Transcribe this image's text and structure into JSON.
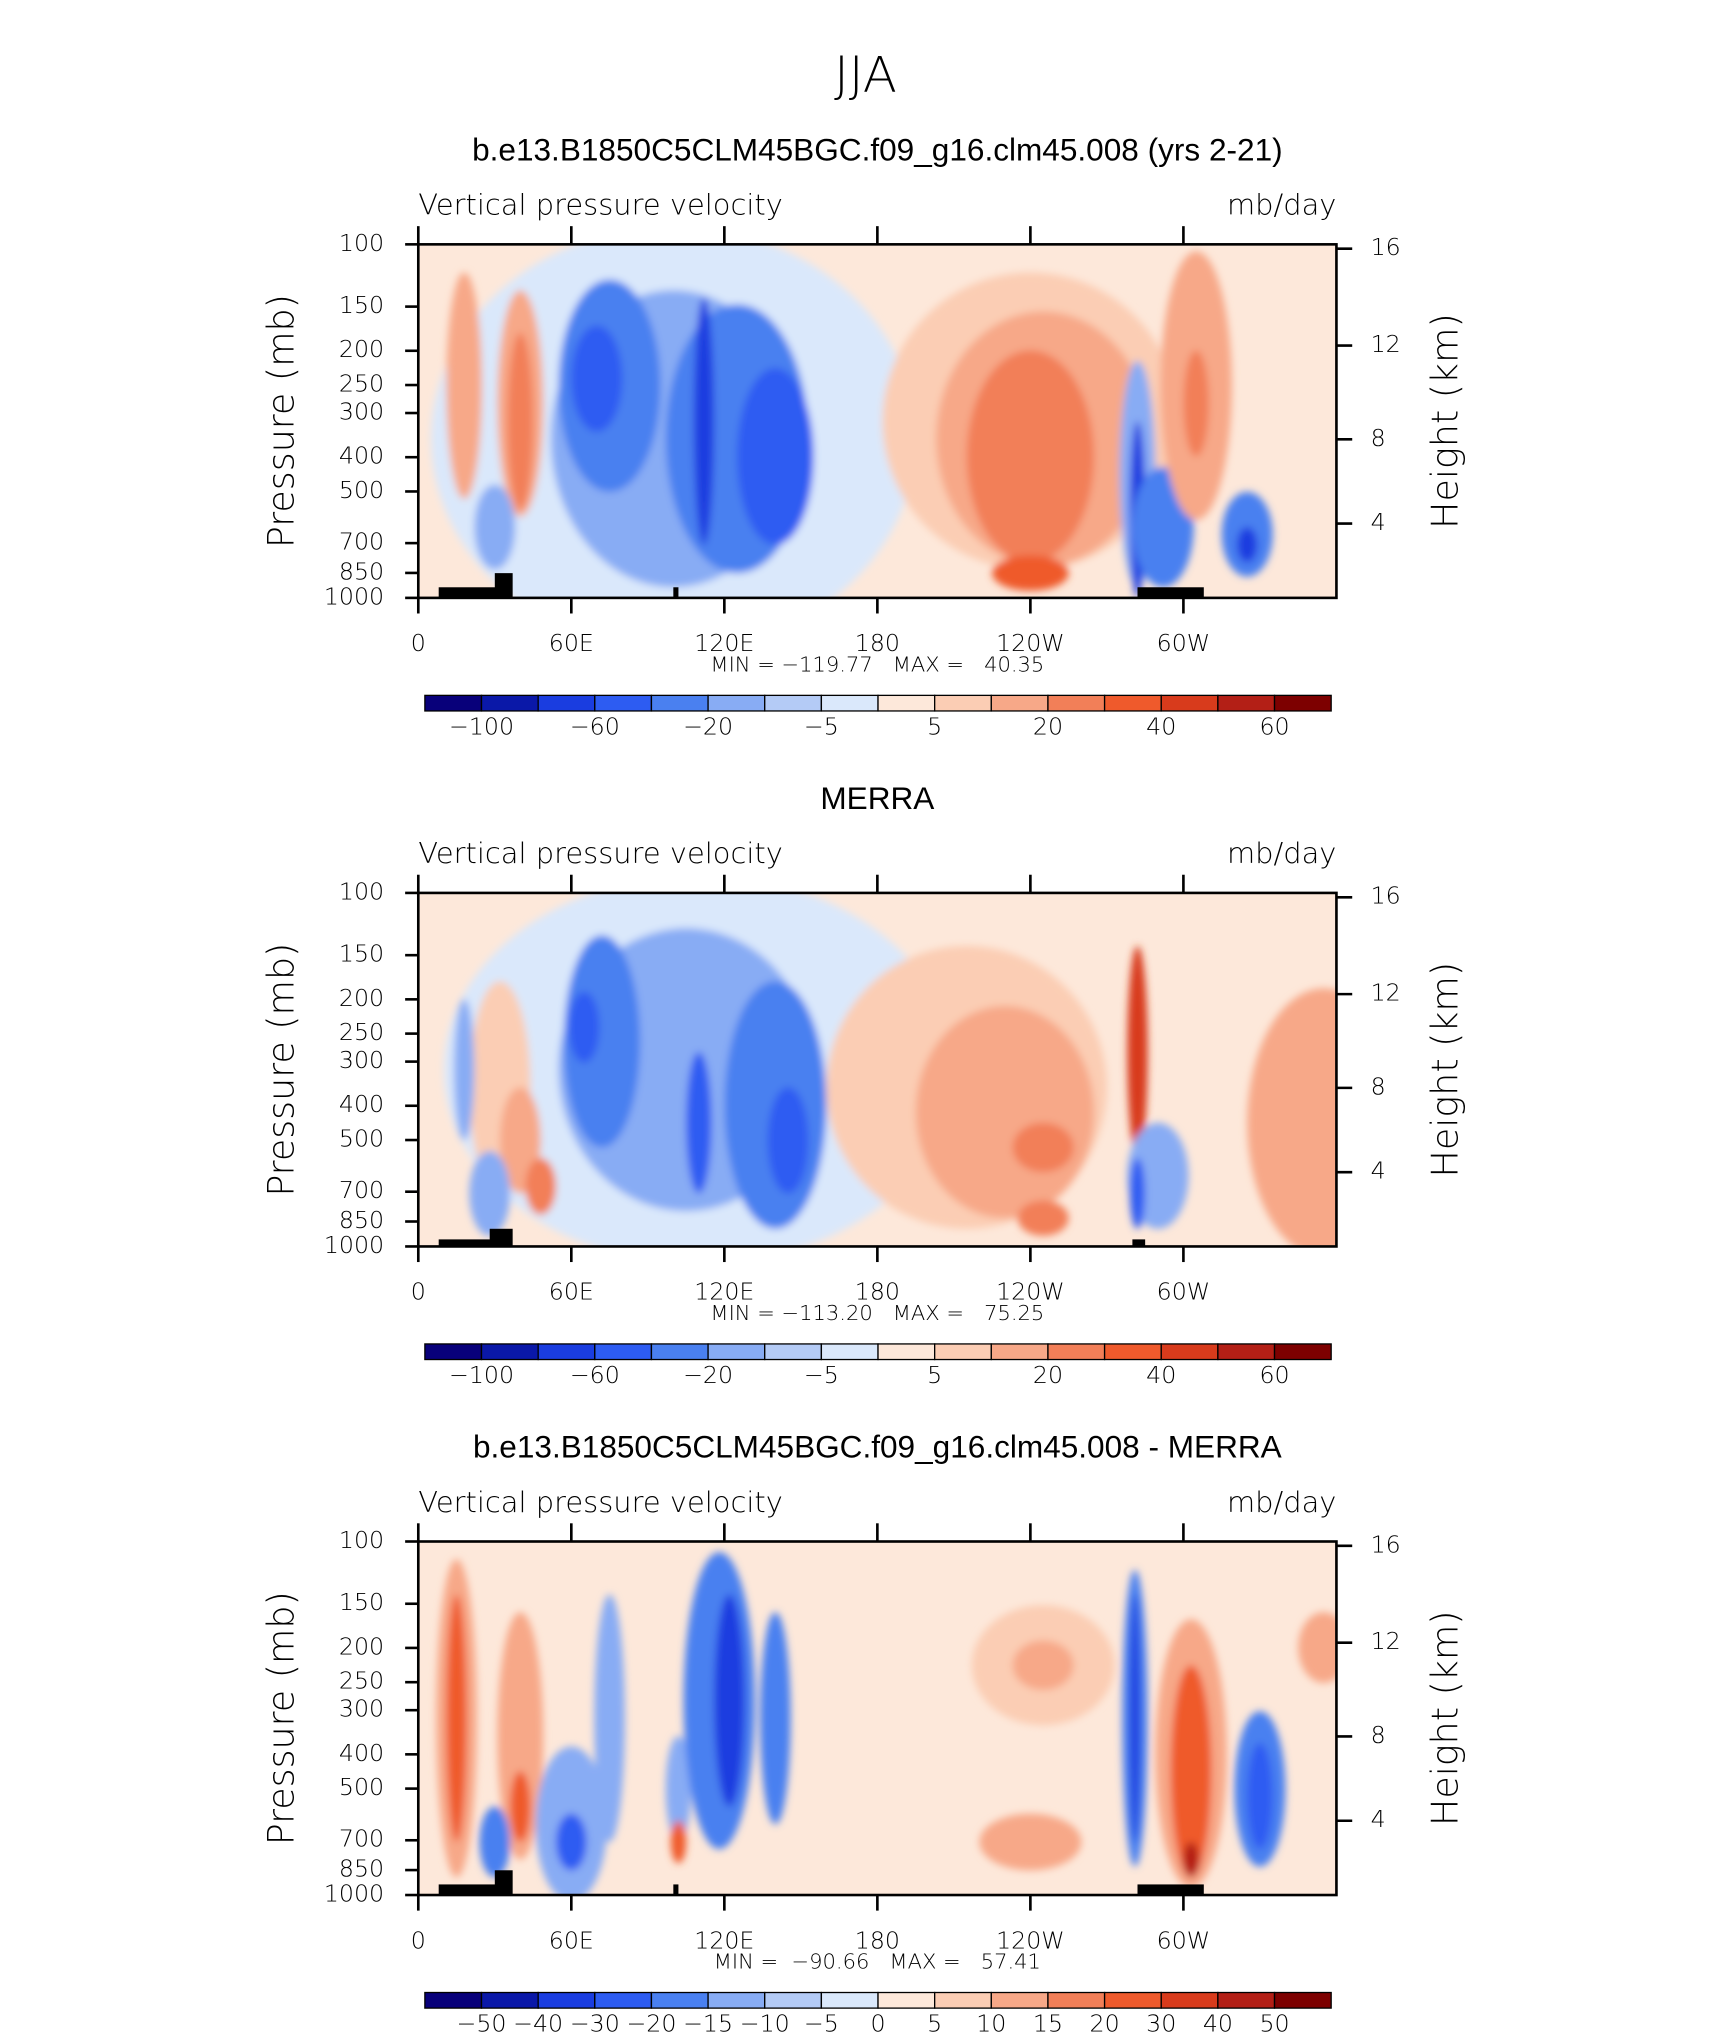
{
  "title": "JJA",
  "chart_data": [
    {
      "type": "contour",
      "title": "b.e13.B1850C5CLM45BGC.f09_g16.clm45.008 (yrs 2-21)",
      "subtitle": "Vertical pressure velocity",
      "units": "mb/day",
      "y_label": "Pressure (mb)",
      "y2_label": "Height (km)",
      "log_y": true,
      "xlim": [
        0,
        360
      ],
      "xticks": [
        0,
        {
          "value": 60,
          "label": "60E"
        },
        {
          "value": 120,
          "label": "120E"
        },
        180,
        {
          "value": 240,
          "label": "120W"
        },
        {
          "value": 300,
          "label": "60W"
        }
      ],
      "ylim": [
        1000,
        100
      ],
      "yticks": [
        100,
        150,
        200,
        250,
        300,
        400,
        500,
        700,
        850,
        1000
      ],
      "y2ticks": [
        16,
        12,
        8,
        4
      ],
      "stats": "MIN = −119.77   MAX =   40.35",
      "colorbar": {
        "colors": [
          "#08007a",
          "#0a18a8",
          "#1a3de0",
          "#2d5cf2",
          "#4a80f0",
          "#88acf4",
          "#b4cbf6",
          "#dae8fb",
          "#fde8da",
          "#fbcdb4",
          "#f7a888",
          "#f27f58",
          "#ef5a2c",
          "#d83b1c",
          "#b31f16",
          "#7d0000"
        ],
        "labels": [
          {
            "value": -100,
            "label": "−100"
          },
          {
            "value": -60,
            "label": "−60"
          },
          {
            "value": -20,
            "label": "−20"
          },
          {
            "value": -5,
            "label": "−5"
          },
          5,
          20,
          40,
          60
        ]
      }
    },
    {
      "type": "contour",
      "title": "MERRA",
      "subtitle": "Vertical pressure velocity",
      "units": "mb/day",
      "y_label": "Pressure (mb)",
      "y2_label": "Height (km)",
      "log_y": true,
      "xlim": [
        0,
        360
      ],
      "xticks": [
        0,
        {
          "value": 60,
          "label": "60E"
        },
        {
          "value": 120,
          "label": "120E"
        },
        180,
        {
          "value": 240,
          "label": "120W"
        },
        {
          "value": 300,
          "label": "60W"
        }
      ],
      "ylim": [
        1000,
        100
      ],
      "yticks": [
        100,
        150,
        200,
        250,
        300,
        400,
        500,
        700,
        850,
        1000
      ],
      "y2ticks": [
        16,
        12,
        8,
        4
      ],
      "stats": "MIN = −113.20   MAX =   75.25",
      "colorbar": {
        "colors": [
          "#08007a",
          "#0a18a8",
          "#1a3de0",
          "#2d5cf2",
          "#4a80f0",
          "#88acf4",
          "#b4cbf6",
          "#dae8fb",
          "#fde8da",
          "#fbcdb4",
          "#f7a888",
          "#f27f58",
          "#ef5a2c",
          "#d83b1c",
          "#b31f16",
          "#7d0000"
        ],
        "labels": [
          {
            "value": -100,
            "label": "−100"
          },
          {
            "value": -60,
            "label": "−60"
          },
          {
            "value": -20,
            "label": "−20"
          },
          {
            "value": -5,
            "label": "−5"
          },
          5,
          20,
          40,
          60
        ]
      }
    },
    {
      "type": "contour",
      "title": "b.e13.B1850C5CLM45BGC.f09_g16.clm45.008 - MERRA",
      "subtitle": "Vertical pressure velocity",
      "units": "mb/day",
      "y_label": "Pressure (mb)",
      "y2_label": "Height (km)",
      "log_y": true,
      "xlim": [
        0,
        360
      ],
      "xticks": [
        0,
        {
          "value": 60,
          "label": "60E"
        },
        {
          "value": 120,
          "label": "120E"
        },
        180,
        {
          "value": 240,
          "label": "120W"
        },
        {
          "value": 300,
          "label": "60W"
        }
      ],
      "ylim": [
        1000,
        100
      ],
      "yticks": [
        100,
        150,
        200,
        250,
        300,
        400,
        500,
        700,
        850,
        1000
      ],
      "y2ticks": [
        16,
        12,
        8,
        4
      ],
      "stats": "MIN =  −90.66   MAX =   57.41",
      "colorbar": {
        "colors": [
          "#08007a",
          "#0a18a8",
          "#1a3de0",
          "#2d5cf2",
          "#4a80f0",
          "#88acf4",
          "#b4cbf6",
          "#dae8fb",
          "#fde8da",
          "#fbcdb4",
          "#f7a888",
          "#f27f58",
          "#ef5a2c",
          "#d83b1c",
          "#b31f16",
          "#7d0000"
        ],
        "labels": [
          {
            "value": -50,
            "label": "−50"
          },
          {
            "value": -40,
            "label": "−40"
          },
          {
            "value": -30,
            "label": "−30"
          },
          {
            "value": -20,
            "label": "−20"
          },
          {
            "value": -15,
            "label": "−15"
          },
          {
            "value": -10,
            "label": "−10"
          },
          {
            "value": -5,
            "label": "−5"
          },
          0,
          5,
          10,
          15,
          20,
          30,
          40,
          50
        ]
      }
    }
  ]
}
